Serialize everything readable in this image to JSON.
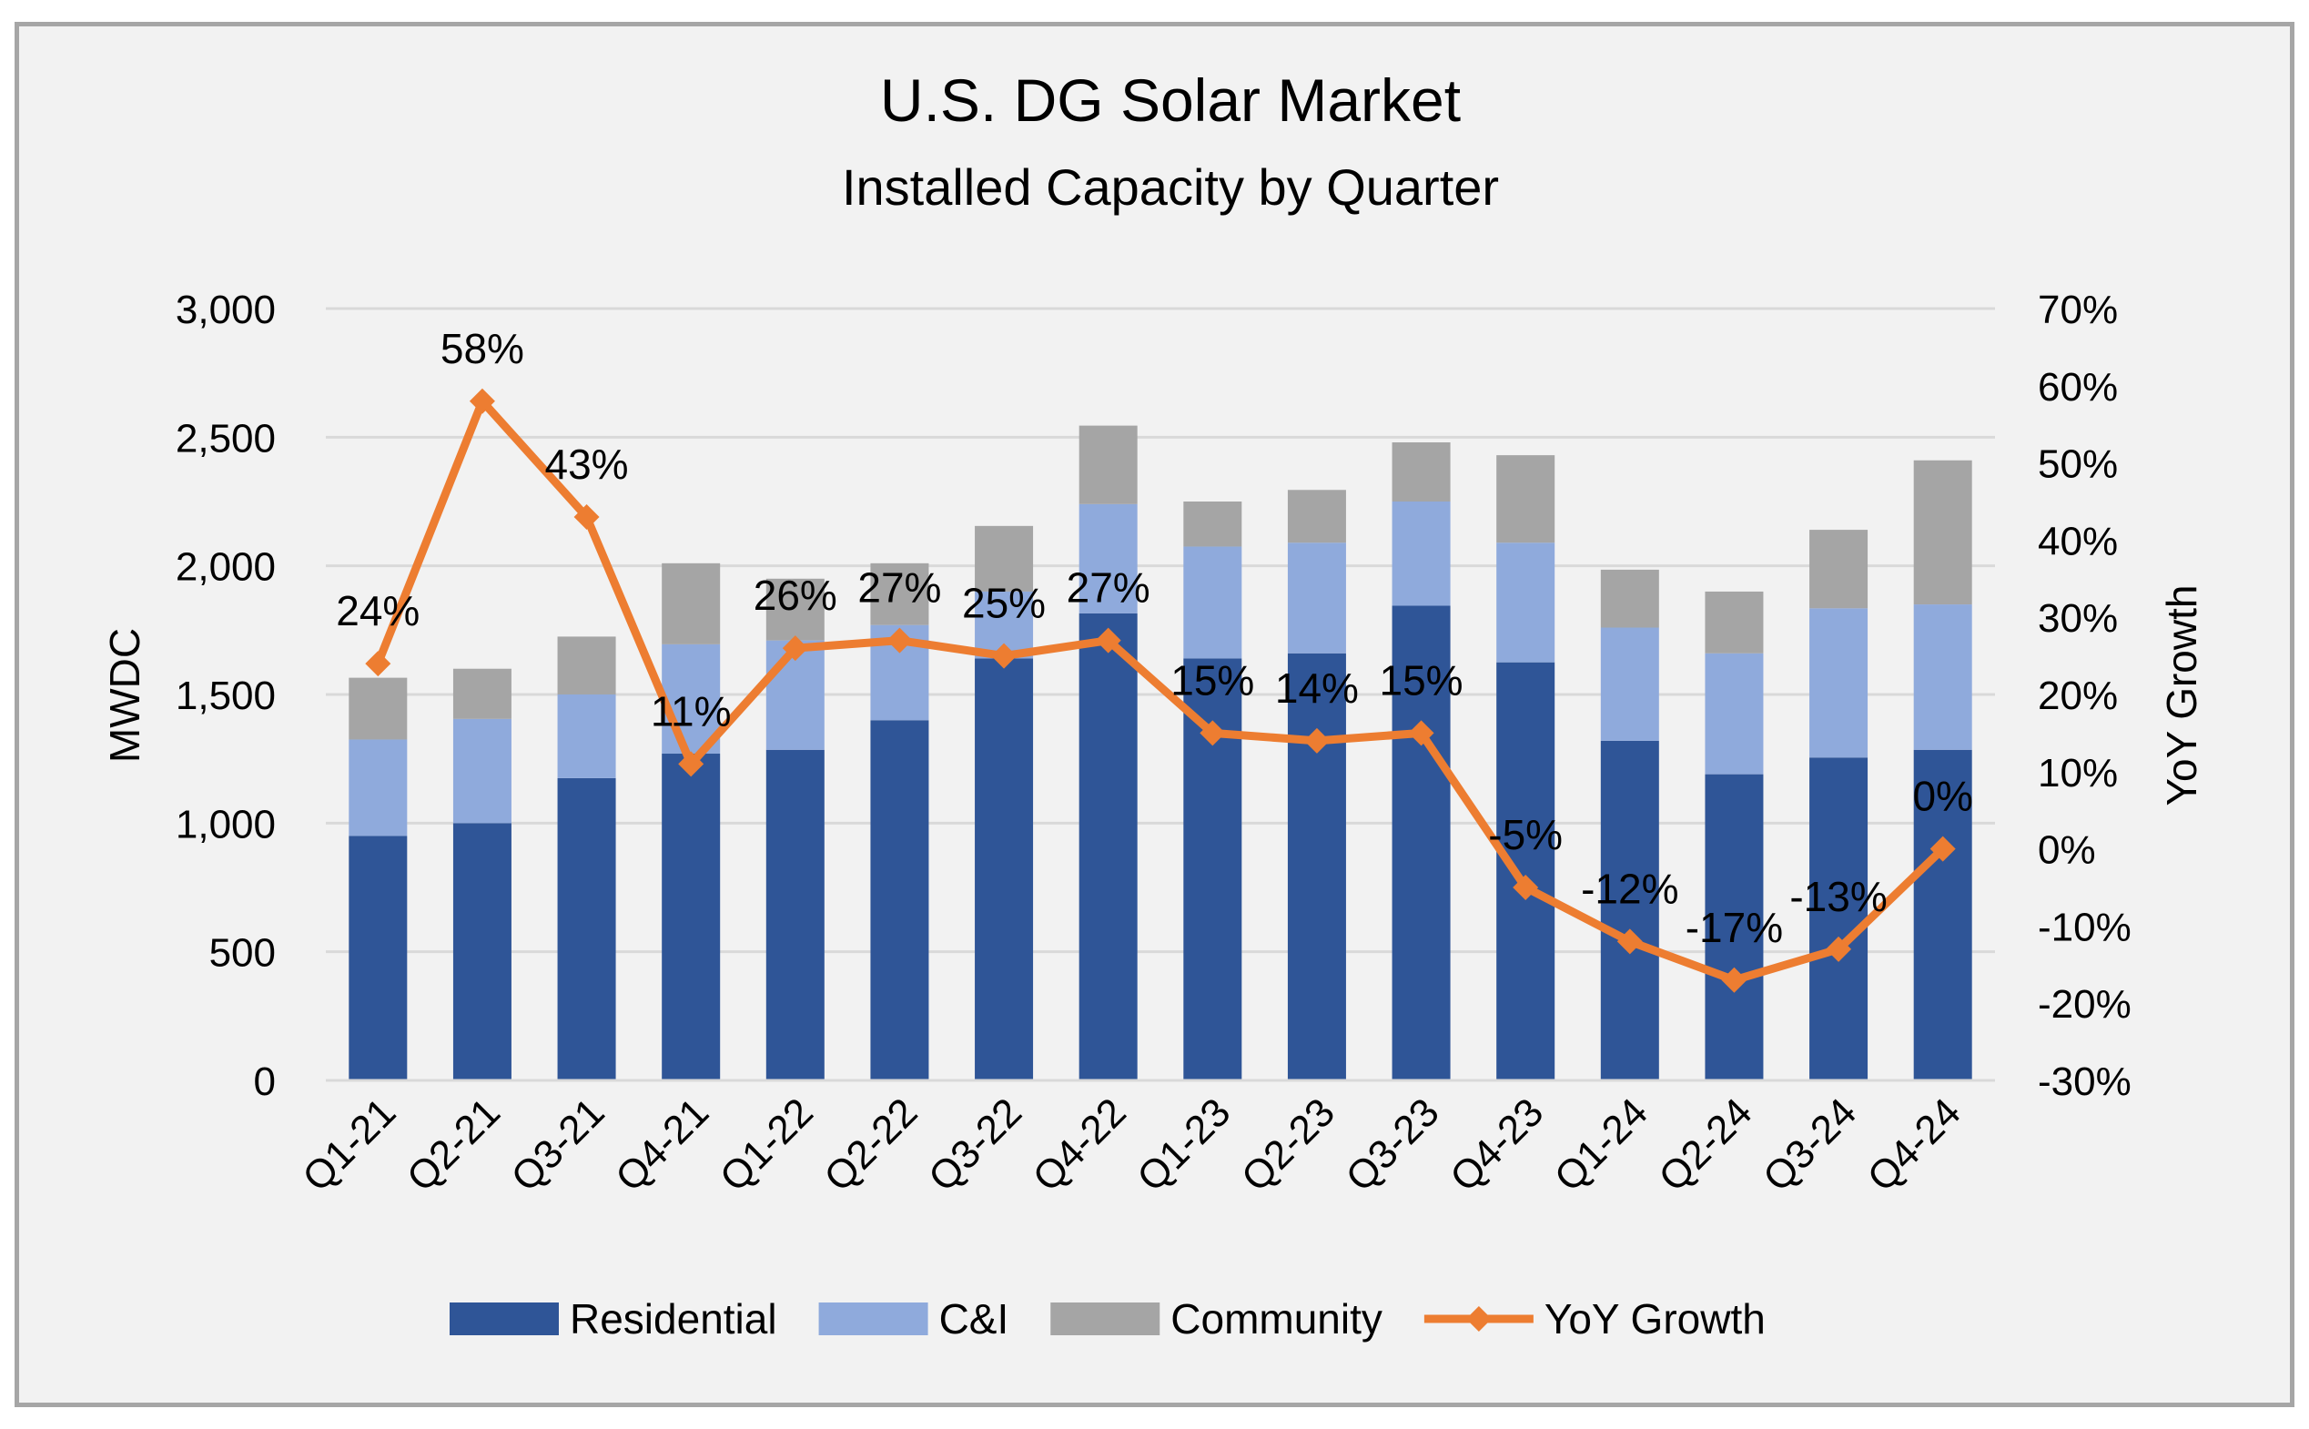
{
  "chart_data": {
    "type": "bar",
    "stacked": true,
    "title": "U.S. DG Solar Market",
    "subtitle": "Installed Capacity by Quarter",
    "ylabel": "MWDC",
    "y2label": "YoY Growth",
    "ylim": [
      0,
      3000
    ],
    "y2lim": [
      -30,
      70
    ],
    "yticks": [
      "0",
      "500",
      "1,000",
      "1,500",
      "2,000",
      "2,500",
      "3,000"
    ],
    "y2ticks": [
      "-30%",
      "-20%",
      "-10%",
      "0%",
      "10%",
      "20%",
      "30%",
      "40%",
      "50%",
      "60%",
      "70%"
    ],
    "grid": true,
    "legend_position": "bottom",
    "categories": [
      "Q1-21",
      "Q2-21",
      "Q3-21",
      "Q4-21",
      "Q1-22",
      "Q2-22",
      "Q3-22",
      "Q4-22",
      "Q1-23",
      "Q2-23",
      "Q3-23",
      "Q4-23",
      "Q1-24",
      "Q2-24",
      "Q3-24",
      "Q4-24"
    ],
    "series": [
      {
        "name": "Residential",
        "type": "bar",
        "color": "#2f5597",
        "values": [
          950,
          1000,
          1175,
          1270,
          1285,
          1400,
          1640,
          1815,
          1640,
          1660,
          1845,
          1625,
          1320,
          1190,
          1255,
          1285
        ]
      },
      {
        "name": "C&I",
        "type": "bar",
        "color": "#8faadc",
        "values": [
          375,
          405,
          325,
          425,
          425,
          370,
          260,
          425,
          435,
          430,
          405,
          465,
          440,
          470,
          580,
          565
        ]
      },
      {
        "name": "Community",
        "type": "bar",
        "color": "#a5a5a5",
        "values": [
          240,
          195,
          225,
          315,
          240,
          240,
          255,
          305,
          175,
          205,
          230,
          340,
          225,
          240,
          305,
          560
        ]
      },
      {
        "name": "YoY Growth",
        "type": "line",
        "axis": "secondary",
        "color": "#ed7d31",
        "values": [
          24,
          58,
          43,
          11,
          26,
          27,
          25,
          27,
          15,
          14,
          15,
          -5,
          -12,
          -17,
          -13,
          0
        ],
        "labels": [
          "24%",
          "58%",
          "43%",
          "11%",
          "26%",
          "27%",
          "25%",
          "27%",
          "15%",
          "14%",
          "15%",
          "-5%",
          "-12%",
          "-17%",
          "-13%",
          "0%"
        ]
      }
    ]
  }
}
